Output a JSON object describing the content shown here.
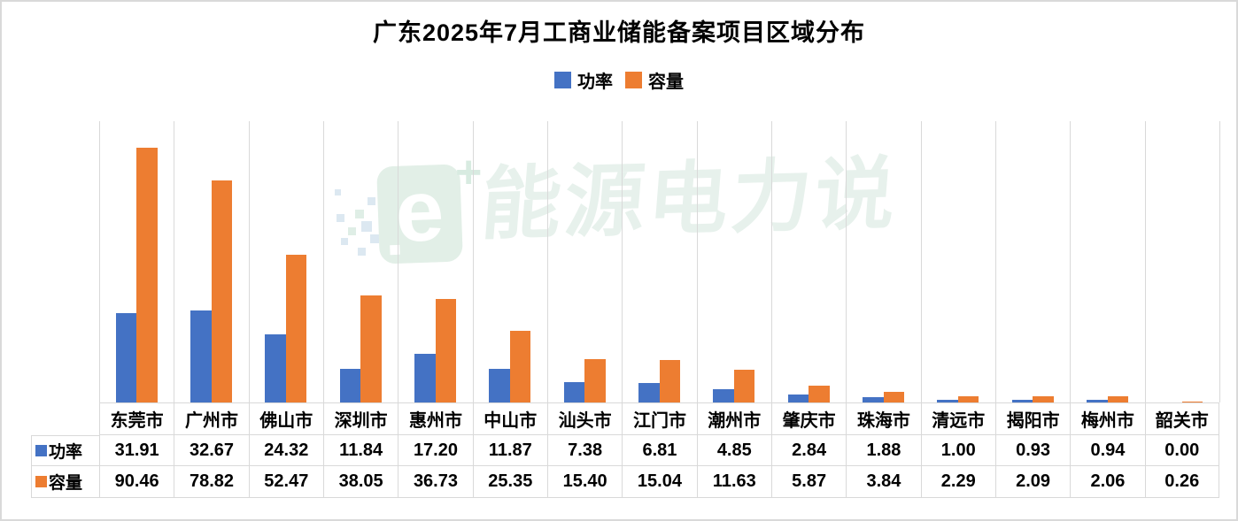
{
  "title": "广东2025年7月工商业储能备案项目区域分布",
  "watermark": {
    "text": "能源电力说",
    "logo_letter": "e",
    "logo_plus": "+"
  },
  "colors": {
    "power_blue": "#4472C4",
    "capacity_orange": "#ED7D31",
    "grid_border": "#D9D9D9",
    "text": "#000000",
    "watermark_green": "#E2EFE7",
    "watermark_dust_blue": "#DCE8F1"
  },
  "chart_data": {
    "type": "bar",
    "title": "广东2025年7月工商业储能备案项目区域分布",
    "categories": [
      "东莞市",
      "广州市",
      "佛山市",
      "深圳市",
      "惠州市",
      "中山市",
      "汕头市",
      "江门市",
      "潮州市",
      "肇庆市",
      "珠海市",
      "清远市",
      "揭阳市",
      "梅州市",
      "韶关市"
    ],
    "series": [
      {
        "name": "功率",
        "color": "#4472C4",
        "values": [
          31.91,
          32.67,
          24.32,
          11.84,
          17.2,
          11.87,
          7.38,
          6.81,
          4.85,
          2.84,
          1.88,
          1.0,
          0.93,
          0.94,
          0.0
        ]
      },
      {
        "name": "容量",
        "color": "#ED7D31",
        "values": [
          90.46,
          78.82,
          52.47,
          38.05,
          36.73,
          25.35,
          15.4,
          15.04,
          11.63,
          5.87,
          3.84,
          2.29,
          2.09,
          2.06,
          0.26
        ]
      }
    ],
    "ylim": [
      0,
      100
    ],
    "xlabel": "",
    "ylabel": "",
    "grid": "vertical-category-separators-only",
    "legend_position": "top",
    "data_table": true,
    "value_format": "0.00"
  }
}
